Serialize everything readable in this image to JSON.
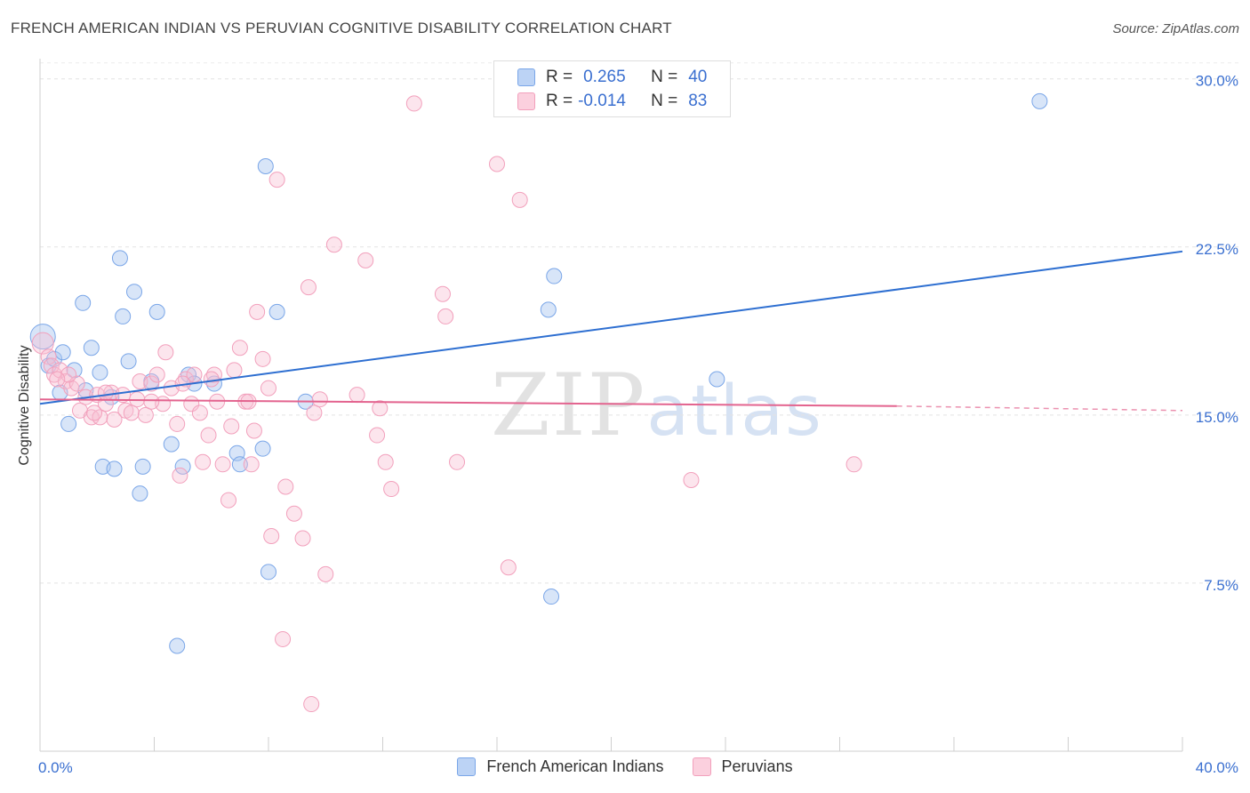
{
  "header": {
    "title": "FRENCH AMERICAN INDIAN VS PERUVIAN COGNITIVE DISABILITY CORRELATION CHART",
    "source": "Source: ZipAtlas.com"
  },
  "watermark": {
    "zip": "ZIP",
    "atlas": "atlas"
  },
  "legend": {
    "r_label": "R =",
    "n_label": "N =",
    "rows": [
      {
        "r": "0.265",
        "n": "40"
      },
      {
        "r": "-0.014",
        "n": "83"
      }
    ]
  },
  "chart_data": {
    "type": "scatter",
    "title": "FRENCH AMERICAN INDIAN VS PERUVIAN COGNITIVE DISABILITY CORRELATION CHART",
    "xlabel": "",
    "ylabel": "Cognitive Disability",
    "xlim": [
      0,
      40
    ],
    "ylim": [
      0,
      30.9
    ],
    "x_tick_labels": [
      "0.0%",
      "40.0%"
    ],
    "y_ticks": [
      7.5,
      15.0,
      22.5,
      30.0
    ],
    "y_tick_labels": [
      "7.5%",
      "15.0%",
      "22.5%",
      "30.0%"
    ],
    "grid": true,
    "legend_position": "top-center",
    "colors": {
      "french_american_indians": "#7aa6e8",
      "french_american_indians_line": "#2e6fd1",
      "peruvians": "#f2a0bc",
      "peruvians_line": "#e3648f",
      "axis_text": "#3a6fd0"
    },
    "series": [
      {
        "name": "French American Indians",
        "r": 0.265,
        "n": 40,
        "trend": {
          "x": [
            0,
            40
          ],
          "y": [
            15.5,
            22.3
          ]
        },
        "points": [
          [
            0.1,
            18.5
          ],
          [
            0.3,
            17.2
          ],
          [
            0.5,
            17.5
          ],
          [
            0.7,
            16.0
          ],
          [
            0.8,
            17.8
          ],
          [
            1.0,
            14.6
          ],
          [
            1.2,
            17.0
          ],
          [
            1.5,
            20.0
          ],
          [
            1.6,
            16.1
          ],
          [
            1.8,
            18.0
          ],
          [
            2.1,
            16.9
          ],
          [
            2.2,
            12.7
          ],
          [
            2.6,
            12.6
          ],
          [
            2.8,
            22.0
          ],
          [
            2.9,
            19.4
          ],
          [
            3.1,
            17.4
          ],
          [
            3.3,
            20.5
          ],
          [
            3.5,
            11.5
          ],
          [
            3.6,
            12.7
          ],
          [
            3.9,
            16.5
          ],
          [
            4.1,
            19.6
          ],
          [
            4.6,
            13.7
          ],
          [
            4.8,
            4.7
          ],
          [
            5.0,
            12.7
          ],
          [
            5.2,
            16.8
          ],
          [
            5.4,
            16.4
          ],
          [
            6.1,
            16.4
          ],
          [
            6.9,
            13.3
          ],
          [
            7.0,
            12.8
          ],
          [
            7.8,
            13.5
          ],
          [
            7.9,
            26.1
          ],
          [
            8.0,
            8.0
          ],
          [
            8.3,
            19.6
          ],
          [
            9.3,
            15.6
          ],
          [
            17.8,
            19.7
          ],
          [
            17.9,
            6.9
          ],
          [
            18.0,
            21.2
          ],
          [
            23.7,
            16.6
          ],
          [
            35.0,
            29.0
          ],
          [
            2.5,
            15.8
          ]
        ]
      },
      {
        "name": "Peruvians",
        "r": -0.014,
        "n": 83,
        "trend": {
          "x": [
            0,
            30
          ],
          "y": [
            15.7,
            15.4
          ]
        },
        "trend_dashed": {
          "x": [
            30,
            40
          ],
          "y": [
            15.4,
            15.2
          ]
        },
        "points": [
          [
            0.1,
            18.2
          ],
          [
            0.3,
            17.6
          ],
          [
            0.4,
            17.2
          ],
          [
            0.5,
            16.8
          ],
          [
            0.7,
            17.0
          ],
          [
            0.9,
            16.5
          ],
          [
            1.1,
            16.2
          ],
          [
            1.3,
            16.4
          ],
          [
            1.4,
            15.2
          ],
          [
            1.6,
            15.8
          ],
          [
            1.8,
            14.9
          ],
          [
            2.0,
            15.9
          ],
          [
            2.1,
            14.9
          ],
          [
            2.3,
            15.5
          ],
          [
            2.5,
            16.0
          ],
          [
            2.6,
            14.8
          ],
          [
            2.9,
            15.9
          ],
          [
            3.0,
            15.2
          ],
          [
            3.2,
            15.1
          ],
          [
            3.4,
            15.7
          ],
          [
            3.5,
            16.5
          ],
          [
            3.7,
            15.0
          ],
          [
            3.9,
            16.4
          ],
          [
            4.1,
            16.8
          ],
          [
            4.3,
            15.5
          ],
          [
            4.4,
            17.8
          ],
          [
            4.6,
            16.2
          ],
          [
            4.8,
            14.6
          ],
          [
            4.9,
            12.3
          ],
          [
            5.1,
            16.6
          ],
          [
            5.3,
            15.5
          ],
          [
            5.4,
            16.8
          ],
          [
            5.6,
            15.1
          ],
          [
            5.7,
            12.9
          ],
          [
            5.9,
            14.1
          ],
          [
            6.1,
            16.8
          ],
          [
            6.2,
            15.6
          ],
          [
            6.4,
            12.8
          ],
          [
            6.6,
            11.2
          ],
          [
            6.7,
            14.5
          ],
          [
            6.8,
            17.0
          ],
          [
            7.0,
            18.0
          ],
          [
            7.2,
            15.6
          ],
          [
            7.4,
            12.8
          ],
          [
            7.5,
            14.3
          ],
          [
            7.6,
            19.6
          ],
          [
            7.8,
            17.5
          ],
          [
            8.0,
            16.2
          ],
          [
            8.1,
            9.6
          ],
          [
            8.3,
            25.5
          ],
          [
            8.5,
            5.0
          ],
          [
            8.6,
            11.8
          ],
          [
            8.9,
            10.6
          ],
          [
            9.2,
            9.5
          ],
          [
            9.4,
            20.7
          ],
          [
            9.5,
            2.1
          ],
          [
            9.6,
            15.1
          ],
          [
            9.8,
            15.7
          ],
          [
            10.0,
            7.9
          ],
          [
            10.3,
            22.6
          ],
          [
            11.1,
            15.9
          ],
          [
            11.4,
            21.9
          ],
          [
            11.8,
            14.1
          ],
          [
            11.9,
            15.3
          ],
          [
            12.1,
            12.9
          ],
          [
            12.3,
            11.7
          ],
          [
            13.1,
            28.9
          ],
          [
            14.1,
            20.4
          ],
          [
            14.2,
            19.4
          ],
          [
            14.6,
            12.9
          ],
          [
            16.0,
            26.2
          ],
          [
            16.4,
            8.2
          ],
          [
            16.8,
            24.6
          ],
          [
            22.8,
            12.1
          ],
          [
            28.5,
            12.8
          ],
          [
            1.0,
            16.8
          ],
          [
            2.3,
            16.0
          ],
          [
            3.9,
            15.6
          ],
          [
            5.0,
            16.4
          ],
          [
            6.0,
            16.6
          ],
          [
            7.3,
            15.6
          ],
          [
            0.6,
            16.6
          ],
          [
            1.9,
            15.1
          ]
        ]
      }
    ]
  }
}
